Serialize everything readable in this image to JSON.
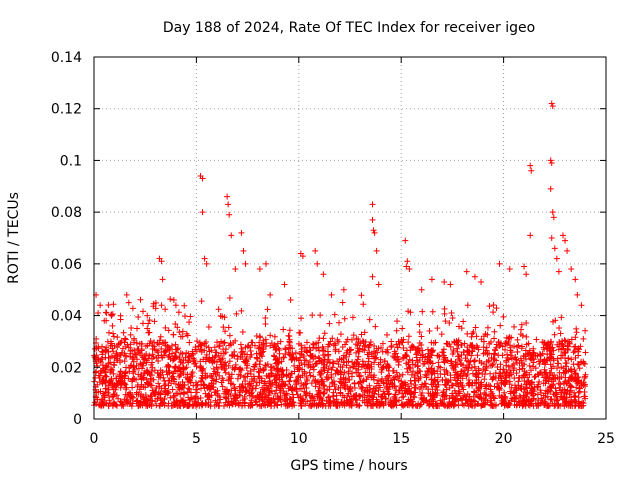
{
  "chart_data": {
    "type": "scatter",
    "title": "Day 188 of 2024, Rate Of TEC Index for receiver igeo",
    "xlabel": "GPS time / hours",
    "ylabel": "ROTI / TECUs",
    "xlim": [
      0,
      25
    ],
    "ylim": [
      0,
      0.14
    ],
    "xticks": [
      "0",
      "5",
      "10",
      "15",
      "20",
      "25"
    ],
    "yticks": [
      "0",
      "0.02",
      "0.04",
      "0.06",
      "0.08",
      "0.1",
      "0.12",
      "0.14"
    ],
    "grid": true,
    "marker": "plus",
    "series": [
      {
        "name": "ROTI",
        "color": "#ff0000",
        "baseline_band": [
          0.005,
          0.03
        ],
        "points": [
          [
            0.1,
            0.048
          ],
          [
            0.2,
            0.041
          ],
          [
            0.3,
            0.044
          ],
          [
            0.5,
            0.038
          ],
          [
            0.9,
            0.036
          ],
          [
            1.6,
            0.048
          ],
          [
            1.7,
            0.045
          ],
          [
            2.1,
            0.035
          ],
          [
            2.6,
            0.04
          ],
          [
            3.2,
            0.062
          ],
          [
            3.3,
            0.061
          ],
          [
            3.35,
            0.054
          ],
          [
            3.3,
            0.044
          ],
          [
            3.9,
            0.046
          ],
          [
            4.0,
            0.044
          ],
          [
            5.2,
            0.094
          ],
          [
            5.3,
            0.093
          ],
          [
            5.3,
            0.08
          ],
          [
            5.4,
            0.062
          ],
          [
            5.5,
            0.06
          ],
          [
            6.5,
            0.086
          ],
          [
            6.55,
            0.083
          ],
          [
            6.6,
            0.079
          ],
          [
            6.7,
            0.071
          ],
          [
            6.9,
            0.058
          ],
          [
            7.2,
            0.072
          ],
          [
            7.3,
            0.065
          ],
          [
            7.4,
            0.06
          ],
          [
            8.1,
            0.058
          ],
          [
            8.4,
            0.06
          ],
          [
            8.6,
            0.048
          ],
          [
            9.3,
            0.052
          ],
          [
            9.6,
            0.046
          ],
          [
            10.1,
            0.064
          ],
          [
            10.2,
            0.063
          ],
          [
            10.8,
            0.065
          ],
          [
            10.9,
            0.06
          ],
          [
            11.2,
            0.056
          ],
          [
            11.6,
            0.048
          ],
          [
            12.2,
            0.05
          ],
          [
            13.6,
            0.083
          ],
          [
            13.6,
            0.077
          ],
          [
            13.65,
            0.073
          ],
          [
            13.7,
            0.072
          ],
          [
            13.8,
            0.065
          ],
          [
            13.6,
            0.055
          ],
          [
            13.9,
            0.052
          ],
          [
            15.2,
            0.069
          ],
          [
            15.3,
            0.061
          ],
          [
            15.25,
            0.059
          ],
          [
            15.4,
            0.058
          ],
          [
            16.0,
            0.05
          ],
          [
            16.5,
            0.054
          ],
          [
            17.1,
            0.053
          ],
          [
            17.4,
            0.052
          ],
          [
            18.2,
            0.057
          ],
          [
            18.6,
            0.055
          ],
          [
            18.9,
            0.053
          ],
          [
            19.8,
            0.06
          ],
          [
            20.3,
            0.058
          ],
          [
            21.0,
            0.059
          ],
          [
            21.1,
            0.056
          ],
          [
            21.3,
            0.071
          ],
          [
            21.3,
            0.098
          ],
          [
            21.35,
            0.096
          ],
          [
            22.3,
            0.1
          ],
          [
            22.35,
            0.099
          ],
          [
            22.3,
            0.089
          ],
          [
            22.4,
            0.08
          ],
          [
            22.45,
            0.078
          ],
          [
            22.35,
            0.07
          ],
          [
            22.5,
            0.066
          ],
          [
            22.6,
            0.062
          ],
          [
            22.7,
            0.057
          ],
          [
            22.35,
            0.122
          ],
          [
            22.4,
            0.121
          ],
          [
            22.9,
            0.071
          ],
          [
            23.0,
            0.069
          ],
          [
            23.1,
            0.065
          ],
          [
            23.3,
            0.058
          ],
          [
            23.5,
            0.054
          ],
          [
            23.6,
            0.048
          ],
          [
            23.8,
            0.044
          ]
        ]
      }
    ]
  }
}
